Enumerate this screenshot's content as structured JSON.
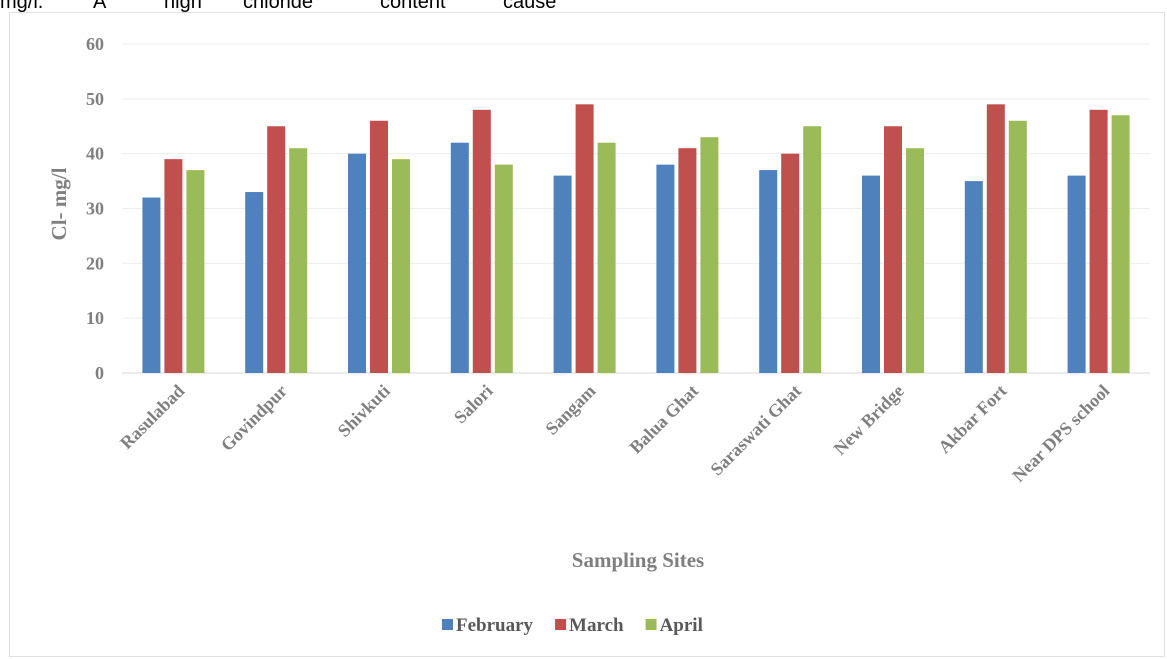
{
  "header_text": {
    "words": [
      "mg/l.",
      "A",
      "high",
      "chloride",
      "content",
      "cause"
    ]
  },
  "colors": {
    "february": "#4f81bd",
    "march": "#c0504d",
    "april": "#9bbb59",
    "grid": "#eeeeee",
    "text": "#7f7f7f"
  },
  "chart_data": {
    "type": "bar",
    "title": "",
    "xlabel": "Sampling Sites",
    "ylabel": "Cl- mg/l",
    "ylim": [
      0,
      60
    ],
    "yticks": [
      0,
      10,
      20,
      30,
      40,
      50,
      60
    ],
    "grid": true,
    "legend_position": "bottom",
    "categories": [
      "Rasulabad",
      "Govindpur",
      "Shivkuti",
      "Salori",
      "Sangam",
      "Balua Ghat",
      "Saraswati Ghat",
      "New Bridge",
      "Akbar Fort",
      "Near DPS school"
    ],
    "series": [
      {
        "name": "February",
        "color": "#4f81bd",
        "values": [
          32,
          33,
          40,
          42,
          36,
          38,
          37,
          36,
          35,
          36
        ]
      },
      {
        "name": "March",
        "color": "#c0504d",
        "values": [
          39,
          45,
          46,
          48,
          49,
          41,
          40,
          45,
          49,
          48
        ]
      },
      {
        "name": "April",
        "color": "#9bbb59",
        "values": [
          37,
          41,
          39,
          38,
          42,
          43,
          45,
          41,
          46,
          47
        ]
      }
    ]
  }
}
